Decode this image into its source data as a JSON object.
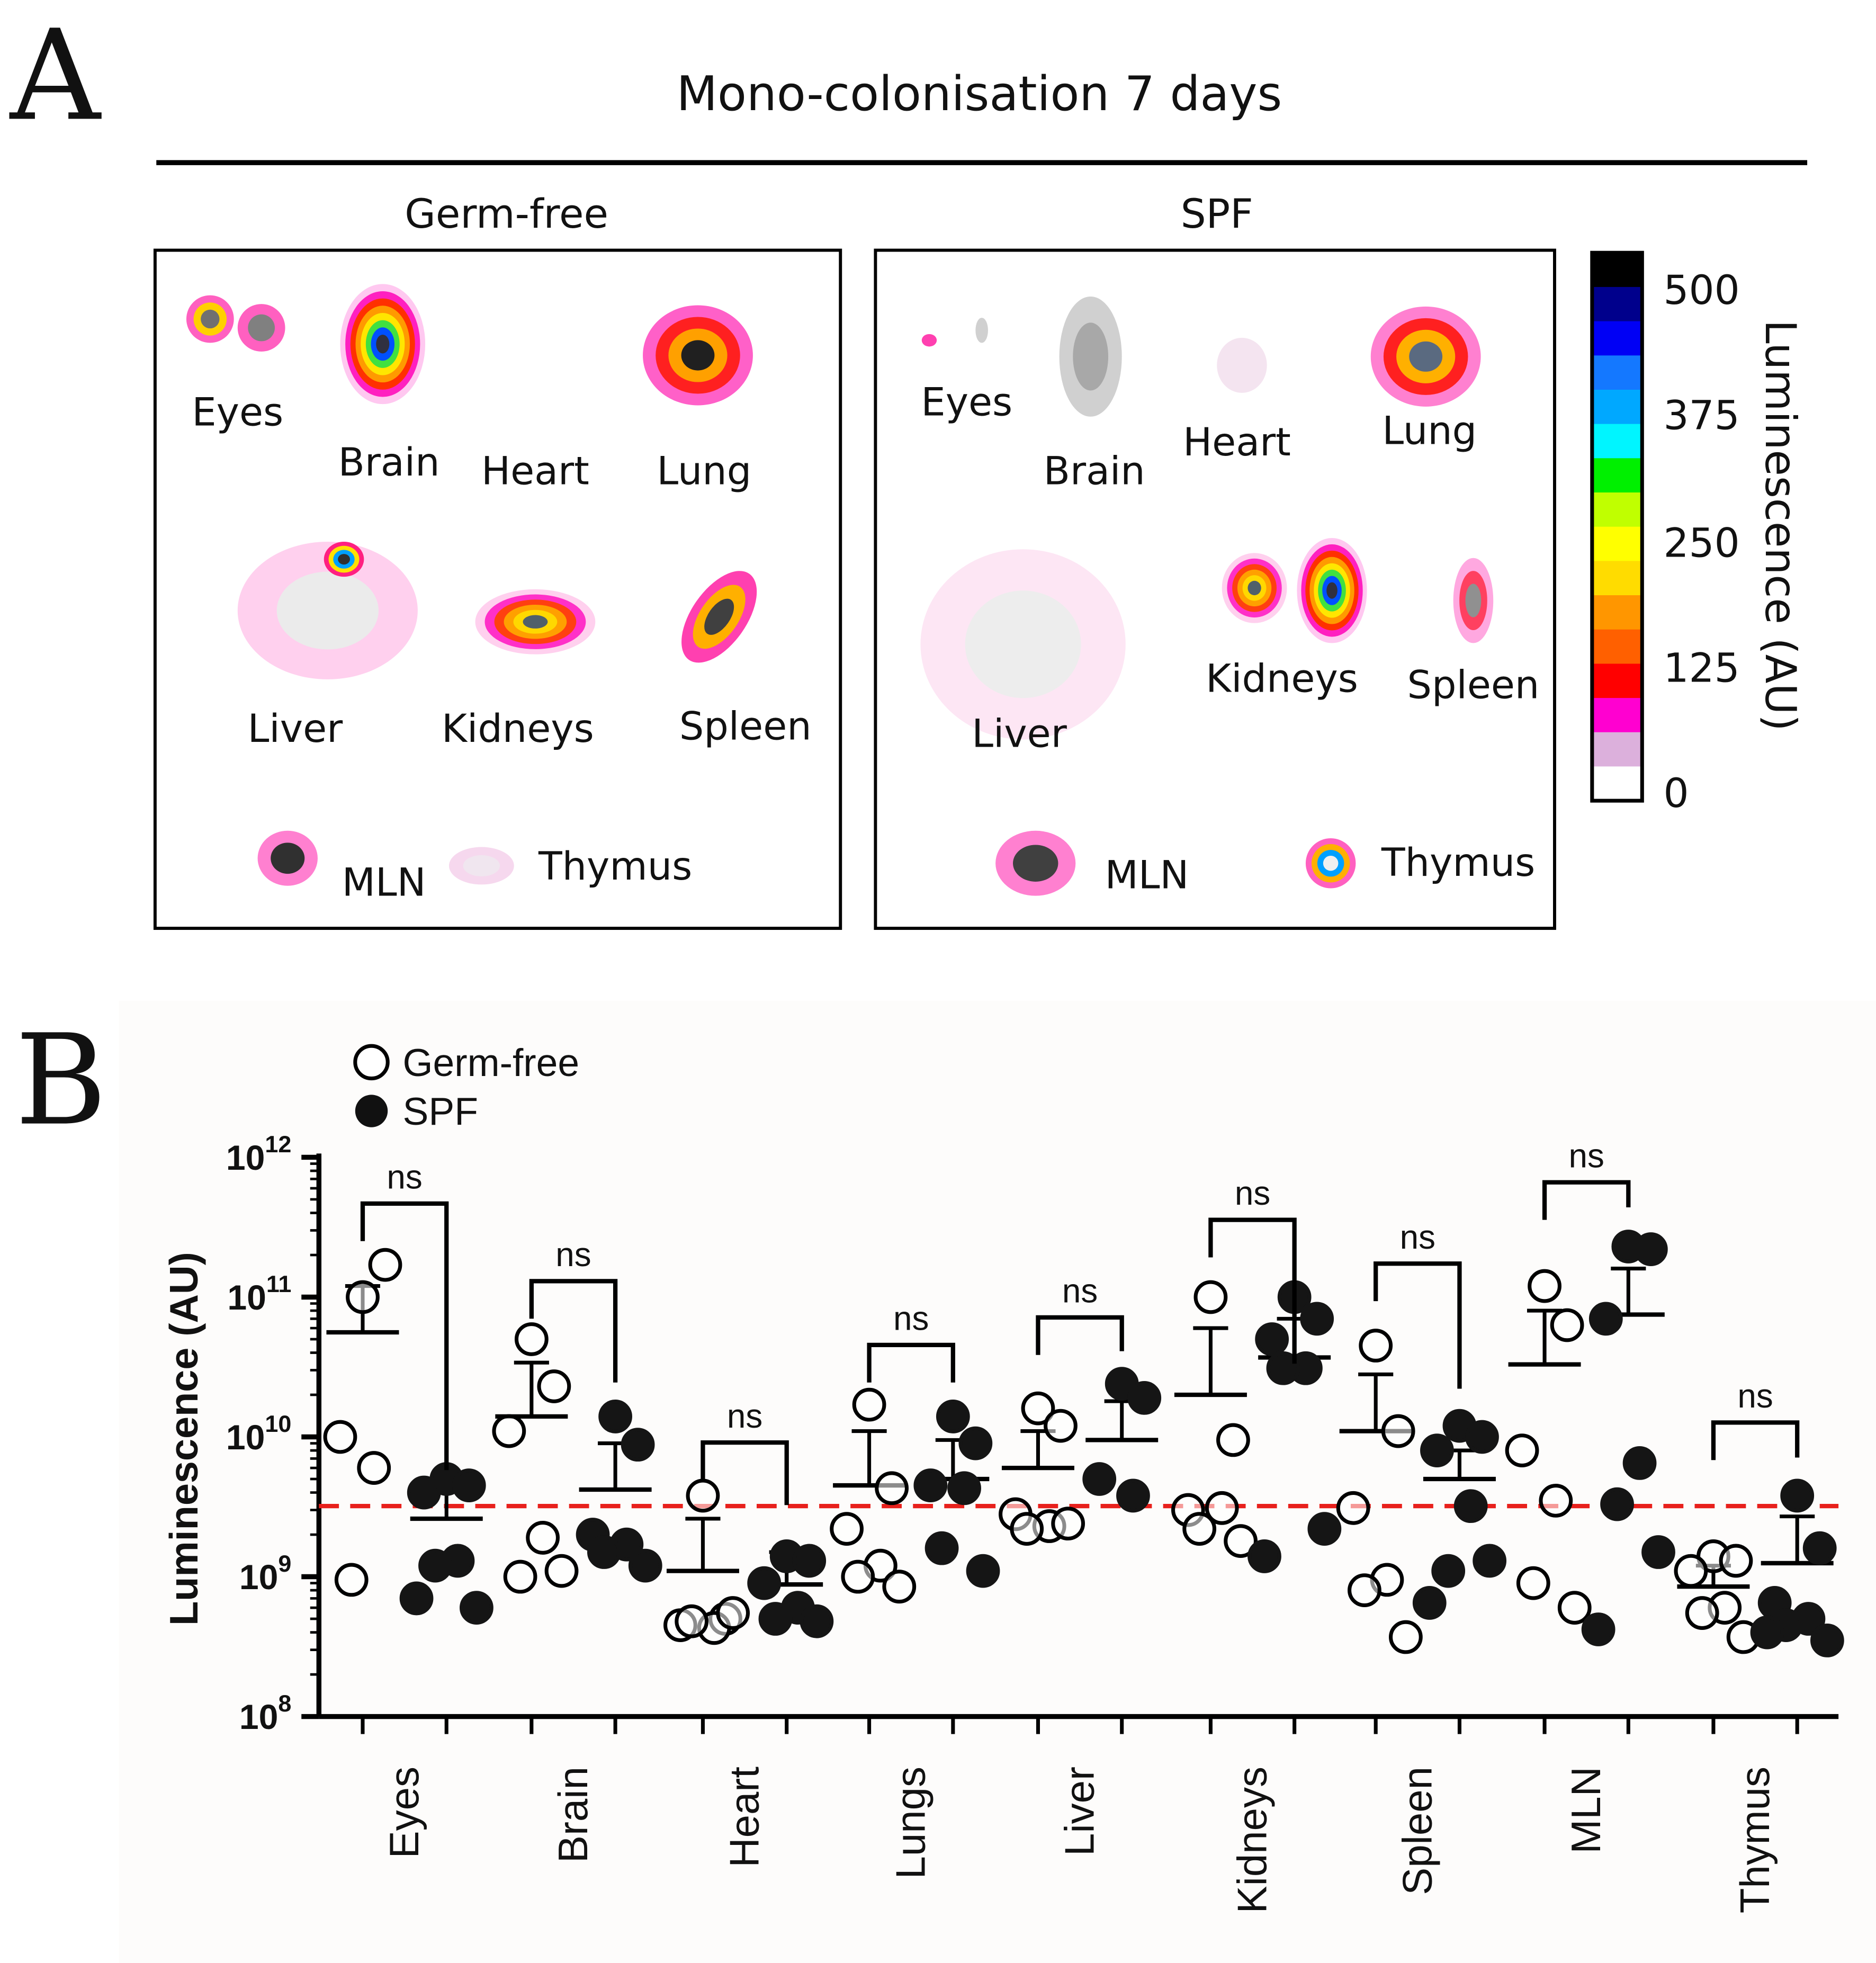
{
  "panel_a": {
    "panel_label": "A",
    "title": "Mono-colonisation 7 days",
    "groups": [
      {
        "name": "Germ-free",
        "organs": [
          "Eyes",
          "Brain",
          "Heart",
          "Lung",
          "Liver",
          "Kidneys",
          "Spleen",
          "MLN",
          "Thymus"
        ]
      },
      {
        "name": "SPF",
        "organs": [
          "Eyes",
          "Brain",
          "Heart",
          "Lung",
          "Kidneys",
          "Spleen",
          "Liver",
          "MLN",
          "Thymus"
        ]
      }
    ],
    "colorbar": {
      "label": "Luminescence (AU)",
      "ticks": [
        "500",
        "375",
        "250",
        "125",
        "0"
      ],
      "colors": [
        "#000000",
        "#00008c",
        "#0000f5",
        "#1478ff",
        "#00a8ff",
        "#00f5ff",
        "#00f000",
        "#c0ff00",
        "#ffff00",
        "#ffdc00",
        "#ff9600",
        "#ff6000",
        "#ff0000",
        "#ff00d0",
        "#dcb0dc",
        "#ffffff"
      ]
    }
  },
  "panel_b": {
    "panel_label": "B",
    "legend": [
      {
        "label": "Germ-free",
        "marker": "open-circle"
      },
      {
        "label": "SPF",
        "marker": "filled-circle"
      }
    ]
  },
  "chart_data": {
    "type": "scatter",
    "title": "",
    "xlabel": "",
    "ylabel": "Luminescence (AU)",
    "yscale": "log",
    "ylim": [
      100000000.0,
      1000000000000.0
    ],
    "ytick_labels": [
      {
        "base": "10",
        "exp": "12"
      },
      {
        "base": "10",
        "exp": "11"
      },
      {
        "base": "10",
        "exp": "10"
      },
      {
        "base": "10",
        "exp": "9"
      },
      {
        "base": "10",
        "exp": "8"
      }
    ],
    "categories": [
      "Eyes",
      "Brain",
      "Heart",
      "Lungs",
      "Liver",
      "Kidneys",
      "Spleen",
      "MLN",
      "Thymus"
    ],
    "threshold": {
      "value": 3200000000.0,
      "color": "#e8201c",
      "style": "dashed"
    },
    "significance": [
      "ns",
      "ns",
      "ns",
      "ns",
      "ns",
      "ns",
      "ns",
      "ns",
      "ns"
    ],
    "legend_position": "top-left",
    "series": [
      {
        "name": "Germ-free",
        "marker": "open",
        "values": [
          [
            100000000000.0,
            170000000000.0,
            10000000000.0,
            6000000000.0,
            950000000.0
          ],
          [
            50000000000.0,
            23000000000.0,
            11000000000.0,
            1900000000.0,
            1000000000.0,
            1100000000.0
          ],
          [
            3800000000.0,
            500000000.0,
            450000000.0,
            430000000.0,
            480000000.0,
            550000000.0
          ],
          [
            17000000000.0,
            4300000000.0,
            2200000000.0,
            1200000000.0,
            1000000000.0,
            850000000.0
          ],
          [
            16000000000.0,
            12000000000.0,
            2800000000.0,
            2300000000.0,
            2200000000.0,
            2400000000.0
          ],
          [
            100000000000.0,
            9500000000.0,
            3000000000.0,
            3100000000.0,
            2200000000.0,
            1800000000.0
          ],
          [
            45000000000.0,
            11000000000.0,
            3100000000.0,
            950000000.0,
            800000000.0,
            370000000.0
          ],
          [
            120000000000.0,
            63000000000.0,
            8000000000.0,
            3500000000.0,
            900000000.0,
            600000000.0
          ],
          [
            1400000000.0,
            1300000000.0,
            1100000000.0,
            600000000.0,
            550000000.0,
            370000000.0
          ]
        ],
        "mean": [
          56000000000.0,
          14000000000.0,
          1100000000.0,
          4500000000.0,
          6000000000.0,
          20000000000.0,
          11000000000.0,
          33000000000.0,
          850000000.0
        ],
        "sem_upper": [
          120000000000.0,
          34000000000.0,
          2600000000.0,
          11000000000.0,
          11000000000.0,
          60000000000.0,
          28000000000.0,
          80000000000.0,
          1200000000.0
        ]
      },
      {
        "name": "SPF",
        "marker": "filled",
        "values": [
          [
            5000000000.0,
            4500000000.0,
            4000000000.0,
            1300000000.0,
            1200000000.0,
            600000000.0,
            700000000.0
          ],
          [
            14000000000.0,
            8800000000.0,
            2000000000.0,
            1700000000.0,
            1500000000.0,
            1200000000.0
          ],
          [
            1400000000.0,
            1300000000.0,
            900000000.0,
            600000000.0,
            500000000.0,
            480000000.0
          ],
          [
            14000000000.0,
            9000000000.0,
            4500000000.0,
            4300000000.0,
            1600000000.0,
            1100000000.0
          ],
          [
            24000000000.0,
            19000000000.0,
            5000000000.0,
            3800000000.0
          ],
          [
            100000000000.0,
            70000000000.0,
            50000000000.0,
            31000000000.0,
            31000000000.0,
            2200000000.0,
            1400000000.0
          ],
          [
            12000000000.0,
            10000000000.0,
            8000000000.0,
            3200000000.0,
            1100000000.0,
            1300000000.0,
            650000000.0
          ],
          [
            230000000000.0,
            220000000000.0,
            70000000000.0,
            6500000000.0,
            3300000000.0,
            1500000000.0,
            420000000.0
          ],
          [
            3800000000.0,
            1600000000.0,
            650000000.0,
            500000000.0,
            450000000.0,
            350000000.0,
            400000000.0
          ]
        ],
        "mean": [
          2600000000.0,
          4200000000.0,
          880000000.0,
          5000000000.0,
          9500000000.0,
          37000000000.0,
          5000000000.0,
          75000000000.0,
          1250000000.0
        ],
        "sem_upper": [
          4200000000.0,
          9000000000.0,
          1500000000.0,
          9500000000.0,
          18000000000.0,
          70000000000.0,
          8000000000.0,
          160000000000.0,
          2700000000.0
        ]
      }
    ]
  }
}
